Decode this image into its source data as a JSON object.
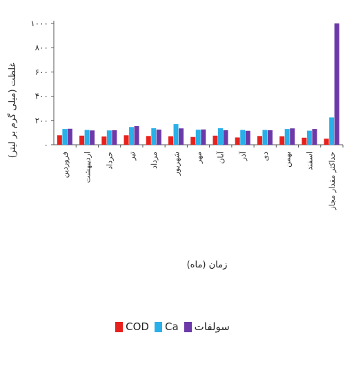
{
  "chart_data": {
    "type": "bar",
    "title": "",
    "ylabel": "غلظت (میلی گرم بر لیتر)",
    "xlabel": "زمان (ماه)",
    "ylim": [
      0,
      1000
    ],
    "yticks": [
      "۰",
      "۲۰۰",
      "۴۰۰",
      "۶۰۰",
      "۸۰۰",
      "۱۰۰۰"
    ],
    "categories": [
      "فروردین",
      "اردیبهشت",
      "خرداد",
      "تیر",
      "مرداد",
      "شهریور",
      "مهر",
      "آبان",
      "آذر",
      "دی",
      "بهمن",
      "اسفند",
      "حداکثر مقدار مجاز"
    ],
    "series": [
      {
        "name": "COD",
        "color": "#e8211d",
        "values": [
          78,
          75,
          68,
          78,
          72,
          70,
          64,
          75,
          60,
          72,
          70,
          58,
          50
        ]
      },
      {
        "name": "Ca",
        "color": "#2ab0e8",
        "values": [
          130,
          122,
          118,
          146,
          136,
          170,
          124,
          136,
          122,
          122,
          130,
          116,
          225
        ]
      },
      {
        "name": "سولفات",
        "color": "#6c3aa8",
        "values": [
          132,
          118,
          120,
          154,
          125,
          135,
          126,
          120,
          115,
          120,
          135,
          130,
          1000
        ]
      }
    ],
    "legend_position": "bottom",
    "grid": false
  }
}
